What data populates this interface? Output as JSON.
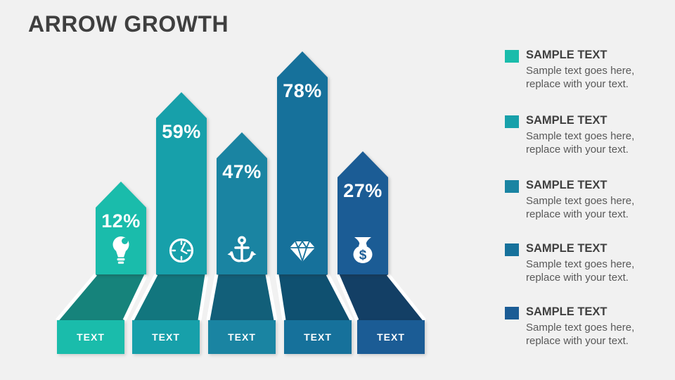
{
  "slide": {
    "title": "ARROW GROWTH",
    "background": "#f1f1f1"
  },
  "chart_data": {
    "type": "bar",
    "title": "Arrow Growth",
    "categories": [
      "TEXT",
      "TEXT",
      "TEXT",
      "TEXT",
      "TEXT"
    ],
    "values": [
      12,
      59,
      47,
      78,
      27
    ],
    "unit": "%",
    "value_labels": [
      "12%",
      "59%",
      "47%",
      "78%",
      "27%"
    ],
    "icons": [
      "lightbulb",
      "clock",
      "anchor",
      "diamond",
      "money-bag"
    ],
    "colors": [
      "#1ABCAB",
      "#17A0AA",
      "#1A84A2",
      "#16719B",
      "#1B5C95"
    ],
    "platform_shadow_colors": [
      "#16837B",
      "#12767E",
      "#125F79",
      "#0F5070",
      "#133F65"
    ],
    "legend_position": "right",
    "grid": false
  },
  "columns": [
    {
      "value_label": "12%",
      "base_label": "TEXT",
      "icon": "lightbulb-icon",
      "color": "#1ABCAB",
      "dark": "#16837B"
    },
    {
      "value_label": "59%",
      "base_label": "TEXT",
      "icon": "clock-icon",
      "color": "#17A0AA",
      "dark": "#12767E"
    },
    {
      "value_label": "47%",
      "base_label": "TEXT",
      "icon": "anchor-icon",
      "color": "#1A84A2",
      "dark": "#125F79"
    },
    {
      "value_label": "78%",
      "base_label": "TEXT",
      "icon": "diamond-icon",
      "color": "#16719B",
      "dark": "#0F5070"
    },
    {
      "value_label": "27%",
      "base_label": "TEXT",
      "icon": "money-bag-icon",
      "color": "#1B5C95",
      "dark": "#133F65"
    }
  ],
  "legend": {
    "items": [
      {
        "title": "SAMPLE TEXT",
        "description": "Sample text goes here, replace with your text.",
        "color": "#1ABCAB"
      },
      {
        "title": "SAMPLE TEXT",
        "description": "Sample text goes here, replace with your text.",
        "color": "#17A0AA"
      },
      {
        "title": "SAMPLE TEXT",
        "description": "Sample text goes here, replace with your text.",
        "color": "#1A84A2"
      },
      {
        "title": "SAMPLE TEXT",
        "description": "Sample text goes here, replace with your text.",
        "color": "#16719B"
      },
      {
        "title": "SAMPLE TEXT",
        "description": "Sample text goes here, replace with your text.",
        "color": "#1B5C95"
      }
    ]
  }
}
